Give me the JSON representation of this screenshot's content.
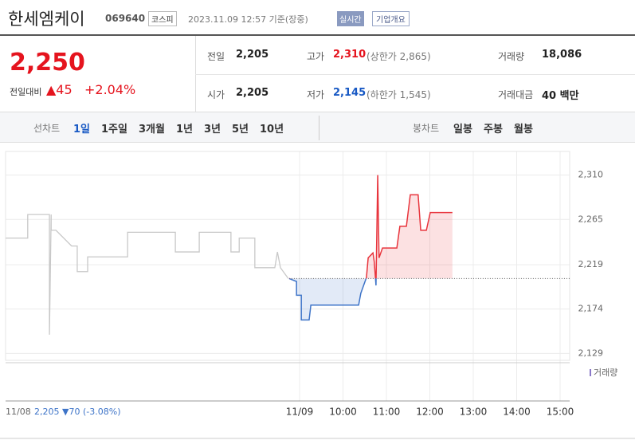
{
  "header": {
    "name": "한세엠케이",
    "code": "069640",
    "market": "코스피",
    "datetime": "2023.11.09 12:57 기준(장중)",
    "realtime": "실시간",
    "company_info": "기업개요"
  },
  "quote": {
    "price": "2,250",
    "change_label": "전일대비",
    "change": "▲45",
    "change_pct": "+2.04%"
  },
  "stats": [
    [
      {
        "label": "전일",
        "value": "2,205"
      },
      {
        "label": "고가",
        "value": "2,310",
        "extra": "(상한가 2,865)"
      },
      {
        "label": "거래량",
        "value": "18,086"
      }
    ],
    [
      {
        "label": "시가",
        "value": "2,205"
      },
      {
        "label": "저가",
        "value": "2,145",
        "extra": "(하한가 1,545)"
      },
      {
        "label": "거래대금",
        "value": "40 백만"
      }
    ]
  ],
  "tabs": {
    "line_label": "선차트",
    "line": [
      "1일",
      "1주일",
      "3개월",
      "1년",
      "3년",
      "5년",
      "10년"
    ],
    "candle_label": "봉차트",
    "candle": [
      "일봉",
      "주봉",
      "월봉"
    ]
  },
  "chart": {
    "type": "line",
    "xlim": [
      2.23,
      15.22
    ],
    "ylim": [
      2122,
      2334
    ],
    "yticks": [
      {
        "value": 2310,
        "label": "2,310"
      },
      {
        "value": 2265,
        "label": "2,265"
      },
      {
        "value": 2219,
        "label": "2,219"
      },
      {
        "value": 2174,
        "label": "2,174"
      },
      {
        "value": 2129,
        "label": "2,129"
      }
    ],
    "xticks": [
      {
        "value": 9,
        "label": "11/09"
      },
      {
        "value": 10,
        "label": "10:00"
      },
      {
        "value": 11,
        "label": "11:00"
      },
      {
        "value": 12,
        "label": "12:00"
      },
      {
        "value": 13,
        "label": "13:00"
      },
      {
        "value": 14,
        "label": "14:00"
      },
      {
        "value": 15,
        "label": "15:00"
      }
    ],
    "baseline": 2205,
    "prev_day": {
      "color": "#c8c8c8",
      "x": [
        2.23,
        2.74,
        2.74,
        3.24,
        3.24,
        3.28,
        3.28,
        3.39,
        3.75,
        3.88,
        3.88,
        4.12,
        4.12,
        5.04,
        5.04,
        6.14,
        6.14,
        6.69,
        6.69,
        7.42,
        7.42,
        7.61,
        7.61,
        7.97,
        7.97,
        8.43,
        8.49,
        8.56,
        8.74
      ],
      "values": [
        2246,
        2246,
        2270,
        2270,
        2148,
        2270,
        2254,
        2254,
        2238,
        2238,
        2212,
        2212,
        2227,
        2227,
        2252,
        2252,
        2232,
        2232,
        2252,
        2252,
        2232,
        2232,
        2246,
        2246,
        2216,
        2216,
        2232,
        2216,
        2205
      ]
    },
    "today": {
      "up_color": "#e8343c",
      "down_color": "#3e74c8",
      "x": [
        8.76,
        8.93,
        8.93,
        9.04,
        9.04,
        9.22,
        9.26,
        10.36,
        10.41,
        10.54,
        10.58,
        10.69,
        10.72,
        10.76,
        10.8,
        10.83,
        10.91,
        11.24,
        11.31,
        11.46,
        11.55,
        11.73,
        11.79,
        11.92,
        12.01,
        12.52
      ],
      "values": [
        2205,
        2202,
        2188,
        2188,
        2163,
        2163,
        2178,
        2178,
        2190,
        2206,
        2226,
        2231,
        2222,
        2198,
        2310,
        2226,
        2236,
        2236,
        2258,
        2258,
        2290,
        2290,
        2254,
        2254,
        2272,
        2272
      ]
    },
    "volume_label": "거래량",
    "prev_info": {
      "date": "11/08",
      "price": "2,205",
      "change": "▼70",
      "change_pct": "(-3.08%)"
    }
  }
}
